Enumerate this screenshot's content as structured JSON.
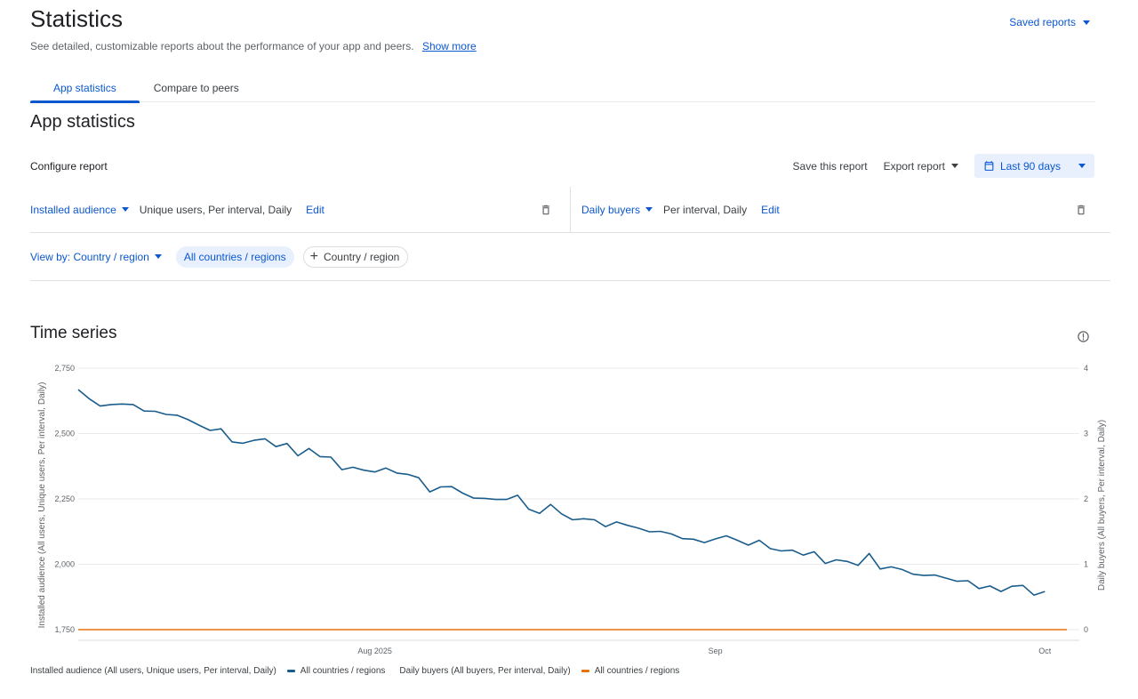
{
  "header": {
    "title": "Statistics",
    "subtitle": "See detailed, customizable reports about the performance of your app and peers.",
    "show_more": "Show more",
    "saved_reports": "Saved reports"
  },
  "tabs": [
    {
      "label": "App statistics",
      "active": true
    },
    {
      "label": "Compare to peers",
      "active": false
    }
  ],
  "section_title": "App statistics",
  "toolbar": {
    "configure_label": "Configure report",
    "save_label": "Save this report",
    "export_label": "Export report",
    "date_range": "Last 90 days"
  },
  "metrics": {
    "left": {
      "name": "Installed audience",
      "detail": "Unique users, Per interval, Daily",
      "edit": "Edit"
    },
    "right": {
      "name": "Daily buyers",
      "detail": "Per interval, Daily",
      "edit": "Edit"
    }
  },
  "view": {
    "view_by": "View by: Country / region",
    "chip_selected": "All countries / regions",
    "chip_add": "Country / region"
  },
  "time_series": {
    "title": "Time series"
  },
  "legend": {
    "left_label": "Installed audience (All users, Unique users, Per interval, Daily)",
    "left_series": "All countries / regions",
    "right_label": "Daily buyers (All buyers, Per interval, Daily)",
    "right_series": "All countries / regions"
  },
  "colors": {
    "accent": "#0b57d0",
    "series_audience": "#1a5d8c",
    "series_buyers": "#e8710a"
  },
  "chart_data": {
    "type": "line",
    "ylabel_left": "Installed audience (All users, Unique users, Per interval, Daily)",
    "ylabel_right": "Daily buyers (All buyers, Per interval, Daily)",
    "ylim_left": [
      1750,
      2750
    ],
    "ylim_right": [
      0,
      4
    ],
    "yticks_left": [
      "1,750",
      "2,000",
      "2,250",
      "2,500",
      "2,750"
    ],
    "yticks_right": [
      "0",
      "1",
      "2",
      "3",
      "4"
    ],
    "xlim": [
      "2025-07-05",
      "2025-10-03"
    ],
    "xticks": [
      {
        "date": "2025-08-01",
        "label": "Aug 2025"
      },
      {
        "date": "2025-09-01",
        "label": "Sep"
      },
      {
        "date": "2025-10-01",
        "label": "Oct"
      }
    ],
    "grid": true,
    "legend_position": "bottom-left",
    "series": [
      {
        "name": "All countries / regions",
        "axis": "left",
        "x_start": "2025-07-05",
        "x_step_days": 1,
        "values": [
          2668,
          2633,
          2605,
          2611,
          2613,
          2611,
          2586,
          2585,
          2573,
          2570,
          2553,
          2532,
          2512,
          2518,
          2468,
          2463,
          2474,
          2480,
          2450,
          2462,
          2415,
          2443,
          2412,
          2410,
          2362,
          2371,
          2360,
          2353,
          2368,
          2349,
          2344,
          2331,
          2277,
          2296,
          2297,
          2272,
          2253,
          2252,
          2248,
          2248,
          2264,
          2211,
          2195,
          2229,
          2193,
          2170,
          2174,
          2170,
          2144,
          2162,
          2149,
          2138,
          2124,
          2126,
          2116,
          2098,
          2096,
          2083,
          2097,
          2109,
          2092,
          2073,
          2092,
          2060,
          2051,
          2054,
          2035,
          2048,
          2003,
          2017,
          2011,
          1996,
          2041,
          1982,
          1990,
          1980,
          1962,
          1957,
          1959,
          1947,
          1935,
          1937,
          1907,
          1917,
          1896,
          1916,
          1919,
          1882,
          1896
        ]
      },
      {
        "name": "All countries / regions",
        "axis": "right",
        "x_start": "2025-07-05",
        "x_step_days": 1,
        "constant_value": 0
      }
    ]
  }
}
